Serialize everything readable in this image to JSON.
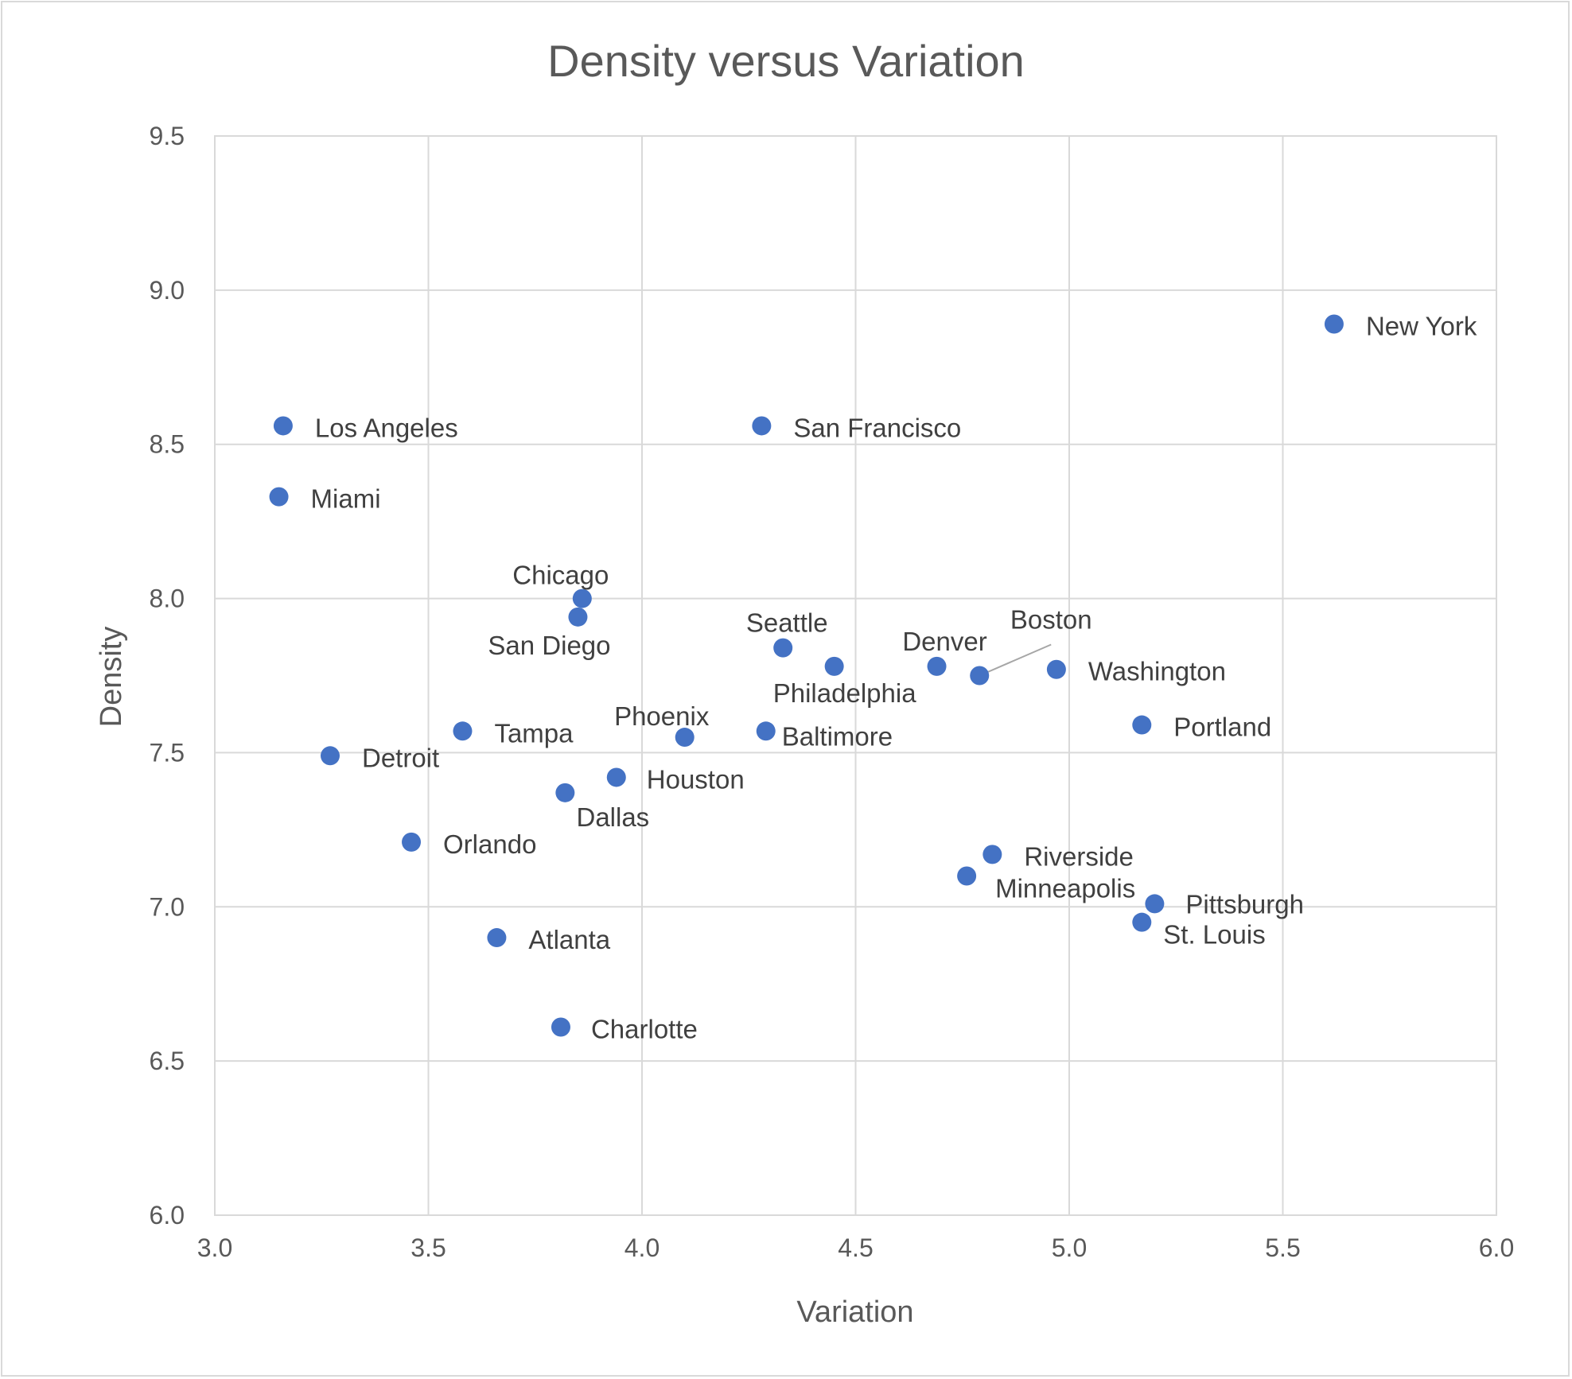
{
  "chart_data": {
    "type": "scatter",
    "title": "Density versus Variation",
    "xlabel": "Variation",
    "ylabel": "Density",
    "xlim": [
      3.0,
      6.0
    ],
    "ylim": [
      6.0,
      9.5
    ],
    "x_ticks": [
      "3.0",
      "3.5",
      "4.0",
      "4.5",
      "5.0",
      "5.5",
      "6.0"
    ],
    "y_ticks": [
      "6.0",
      "6.5",
      "7.0",
      "7.5",
      "8.0",
      "8.5",
      "9.0",
      "9.5"
    ],
    "grid": true,
    "marker_color": "#4472C4",
    "points": [
      {
        "label": "New York",
        "x": 5.62,
        "y": 8.89
      },
      {
        "label": "Los Angeles",
        "x": 3.16,
        "y": 8.56
      },
      {
        "label": "San Francisco",
        "x": 4.28,
        "y": 8.56
      },
      {
        "label": "Miami",
        "x": 3.15,
        "y": 8.33
      },
      {
        "label": "Chicago",
        "x": 3.86,
        "y": 8.0
      },
      {
        "label": "San Diego",
        "x": 3.85,
        "y": 7.94
      },
      {
        "label": "Seattle",
        "x": 4.33,
        "y": 7.84
      },
      {
        "label": "Philadelphia",
        "x": 4.45,
        "y": 7.78
      },
      {
        "label": "Denver",
        "x": 4.69,
        "y": 7.78
      },
      {
        "label": "Boston",
        "x": 4.79,
        "y": 7.75
      },
      {
        "label": "Washington",
        "x": 4.97,
        "y": 7.77
      },
      {
        "label": "Portland",
        "x": 5.17,
        "y": 7.59
      },
      {
        "label": "Tampa",
        "x": 3.58,
        "y": 7.57
      },
      {
        "label": "Phoenix",
        "x": 4.1,
        "y": 7.55
      },
      {
        "label": "Baltimore",
        "x": 4.29,
        "y": 7.57
      },
      {
        "label": "Detroit",
        "x": 3.27,
        "y": 7.49
      },
      {
        "label": "Houston",
        "x": 3.94,
        "y": 7.42
      },
      {
        "label": "Dallas",
        "x": 3.82,
        "y": 7.37
      },
      {
        "label": "Orlando",
        "x": 3.46,
        "y": 7.21
      },
      {
        "label": "Riverside",
        "x": 4.82,
        "y": 7.17
      },
      {
        "label": "Minneapolis",
        "x": 4.76,
        "y": 7.1
      },
      {
        "label": "Pittsburgh",
        "x": 5.2,
        "y": 7.01
      },
      {
        "label": "St. Louis",
        "x": 5.17,
        "y": 6.95
      },
      {
        "label": "Atlanta",
        "x": 3.66,
        "y": 6.9
      },
      {
        "label": "Charlotte",
        "x": 3.81,
        "y": 6.61
      }
    ]
  }
}
